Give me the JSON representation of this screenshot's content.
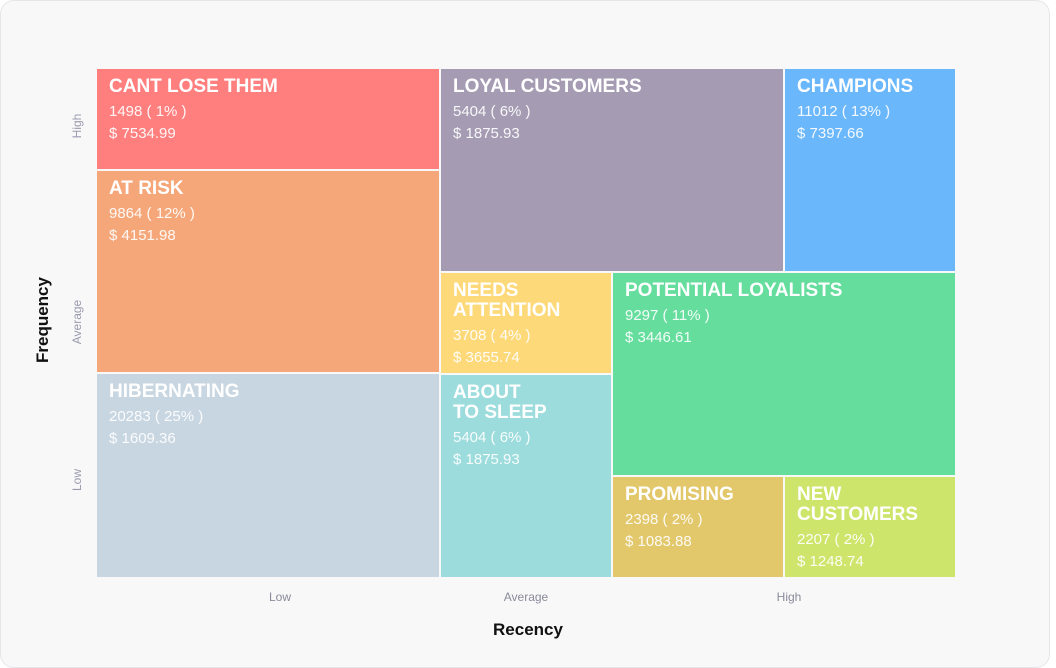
{
  "axes": {
    "y_title": "Frequency",
    "x_title": "Recency",
    "y_ticks": [
      "High",
      "Average",
      "Low"
    ],
    "x_ticks": [
      "Low",
      "Average",
      "High"
    ]
  },
  "segments": [
    {
      "name": "CANT LOSE THEM",
      "count": "1498 ( 1% )",
      "value": "$ 7534.99"
    },
    {
      "name": "AT RISK",
      "count": "9864 ( 12% )",
      "value": "$ 4151.98"
    },
    {
      "name": "HIBERNATING",
      "count": "20283 ( 25% )",
      "value": "$ 1609.36"
    },
    {
      "name": "LOYAL CUSTOMERS",
      "count": "5404 ( 6% )",
      "value": "$ 1875.93"
    },
    {
      "name": "CHAMPIONS",
      "count": "11012 ( 13% )",
      "value": "$ 7397.66"
    },
    {
      "name": "NEEDS\nATTENTION",
      "count": "3708 ( 4% )",
      "value": "$ 3655.74"
    },
    {
      "name": "ABOUT\nTO SLEEP",
      "count": "5404 ( 6% )",
      "value": "$ 1875.93"
    },
    {
      "name": "POTENTIAL LOYALISTS",
      "count": "9297 ( 11% )",
      "value": "$ 3446.61"
    },
    {
      "name": "PROMISING",
      "count": "2398 ( 2% )",
      "value": "$ 1083.88"
    },
    {
      "name": "NEW\nCUSTOMERS",
      "count": "2207 ( 2% )",
      "value": "$ 1248.74"
    }
  ]
}
